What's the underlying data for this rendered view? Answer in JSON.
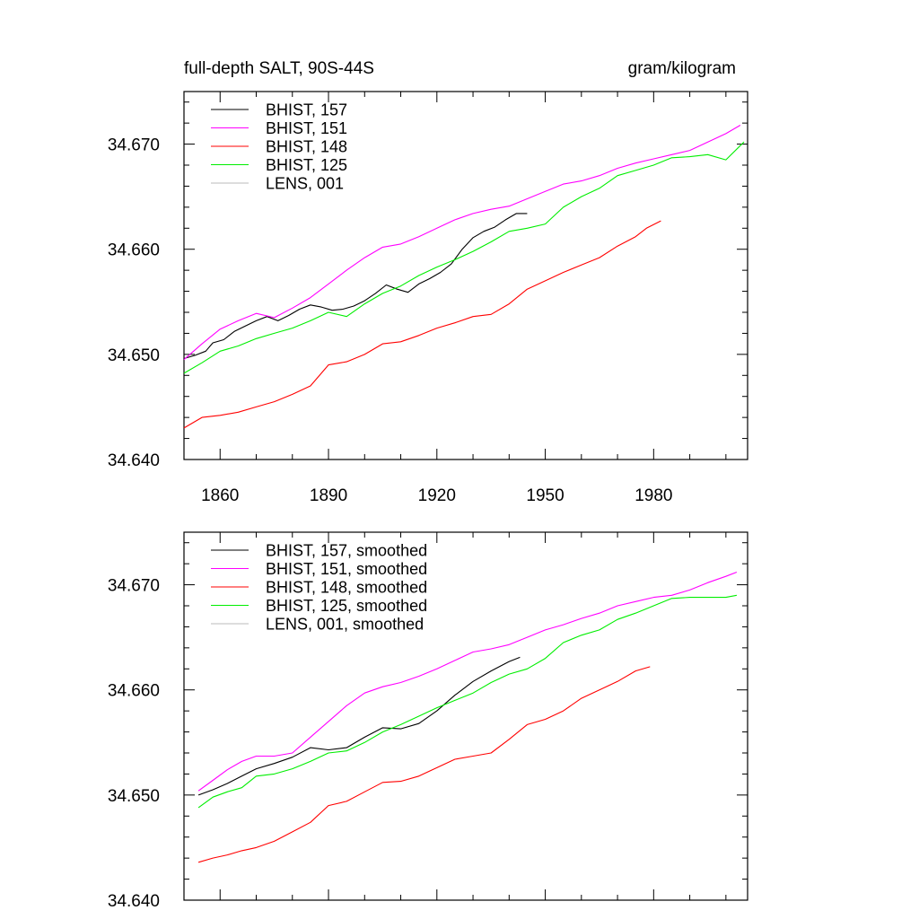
{
  "chart_data": [
    {
      "type": "line",
      "title_left": "full-depth SALT, 90S-44S",
      "title_right": "gram/kilogram",
      "xlabel": "",
      "ylabel": "",
      "xlim": [
        1850,
        2006
      ],
      "ylim": [
        34.64,
        34.675
      ],
      "x_ticks": [
        1860,
        1890,
        1920,
        1950,
        1980
      ],
      "x_tick_labels": [
        "1860",
        "1890",
        "1920",
        "1950",
        "1980"
      ],
      "y_ticks": [
        34.64,
        34.65,
        34.66,
        34.67
      ],
      "y_tick_labels": [
        "34.640",
        "34.650",
        "34.660",
        "34.670"
      ],
      "legend_position": "top-left",
      "grid": false,
      "series": [
        {
          "name": "BHIST, 157",
          "color": "#000000",
          "x": [
            1850,
            1853,
            1856,
            1858,
            1861,
            1864,
            1867,
            1870,
            1873,
            1876,
            1879,
            1882,
            1885,
            1888,
            1891,
            1894,
            1897,
            1900,
            1903,
            1906,
            1909,
            1912,
            1915,
            1918,
            1921,
            1924,
            1927,
            1930,
            1933,
            1936,
            1939,
            1942,
            1945
          ],
          "y": [
            34.6496,
            34.6499,
            34.6503,
            34.6511,
            34.6514,
            34.6522,
            34.6527,
            34.6532,
            34.6536,
            34.6532,
            34.6537,
            34.6543,
            34.6547,
            34.6545,
            34.6542,
            34.6543,
            34.6546,
            34.6551,
            34.6558,
            34.6566,
            34.6562,
            34.6559,
            34.6567,
            34.6572,
            34.6578,
            34.6586,
            34.66,
            34.6611,
            34.6617,
            34.6621,
            34.6628,
            34.6634,
            34.6634
          ]
        },
        {
          "name": "BHIST, 151",
          "color": "#ff00ff",
          "x": [
            1850,
            1855,
            1860,
            1865,
            1870,
            1875,
            1880,
            1885,
            1890,
            1895,
            1900,
            1905,
            1910,
            1915,
            1920,
            1925,
            1930,
            1935,
            1940,
            1945,
            1950,
            1955,
            1960,
            1965,
            1970,
            1975,
            1980,
            1985,
            1990,
            1995,
            2000,
            2004
          ],
          "y": [
            34.6495,
            34.651,
            34.6524,
            34.6532,
            34.6539,
            34.6535,
            34.6544,
            34.6554,
            34.6567,
            34.658,
            34.6592,
            34.6602,
            34.6605,
            34.6612,
            34.662,
            34.6628,
            34.6634,
            34.6638,
            34.6641,
            34.6648,
            34.6655,
            34.6662,
            34.6665,
            34.667,
            34.6677,
            34.6682,
            34.6686,
            34.669,
            34.6694,
            34.6702,
            34.671,
            34.6718
          ]
        },
        {
          "name": "BHIST, 148",
          "color": "#ff0000",
          "x": [
            1850,
            1855,
            1860,
            1865,
            1870,
            1875,
            1880,
            1885,
            1890,
            1895,
            1900,
            1905,
            1910,
            1915,
            1920,
            1925,
            1930,
            1935,
            1940,
            1945,
            1950,
            1955,
            1960,
            1965,
            1970,
            1975,
            1978,
            1982
          ],
          "y": [
            34.643,
            34.644,
            34.6442,
            34.6445,
            34.645,
            34.6455,
            34.6462,
            34.647,
            34.649,
            34.6493,
            34.65,
            34.651,
            34.6512,
            34.6518,
            34.6525,
            34.653,
            34.6536,
            34.6538,
            34.6548,
            34.6562,
            34.657,
            34.6578,
            34.6585,
            34.6592,
            34.6603,
            34.6612,
            34.662,
            34.6627
          ]
        },
        {
          "name": "BHIST, 125",
          "color": "#00ee00",
          "x": [
            1850,
            1855,
            1860,
            1865,
            1870,
            1875,
            1880,
            1885,
            1890,
            1895,
            1900,
            1905,
            1910,
            1915,
            1920,
            1925,
            1930,
            1935,
            1940,
            1945,
            1950,
            1955,
            1960,
            1965,
            1970,
            1975,
            1980,
            1985,
            1990,
            1995,
            2000,
            2005
          ],
          "y": [
            34.6482,
            34.6492,
            34.6503,
            34.6508,
            34.6515,
            34.652,
            34.6525,
            34.6532,
            34.654,
            34.6536,
            34.6548,
            34.6558,
            34.6565,
            34.6575,
            34.6583,
            34.659,
            34.6598,
            34.6607,
            34.6617,
            34.662,
            34.6624,
            34.664,
            34.665,
            34.6658,
            34.667,
            34.6675,
            34.668,
            34.6687,
            34.6688,
            34.669,
            34.6685,
            34.6702
          ]
        },
        {
          "name": "LENS, 001",
          "color": "#bbbbbb",
          "x": [],
          "y": []
        }
      ]
    },
    {
      "type": "line",
      "title_left": "",
      "title_right": "",
      "xlabel": "",
      "ylabel": "",
      "xlim": [
        1850,
        2006
      ],
      "ylim": [
        34.64,
        34.675
      ],
      "x_ticks": [
        1860,
        1890,
        1920,
        1950,
        1980
      ],
      "x_tick_labels": [],
      "y_ticks": [
        34.64,
        34.65,
        34.66,
        34.67
      ],
      "y_tick_labels": [
        "34.640",
        "34.650",
        "34.660",
        "34.670"
      ],
      "legend_position": "top-left",
      "grid": false,
      "series": [
        {
          "name": "BHIST, 157, smoothed",
          "color": "#000000",
          "x": [
            1854,
            1858,
            1862,
            1866,
            1870,
            1875,
            1880,
            1885,
            1890,
            1895,
            1900,
            1905,
            1910,
            1915,
            1920,
            1925,
            1930,
            1935,
            1940,
            1943
          ],
          "y": [
            34.65,
            34.6505,
            34.6511,
            34.6518,
            34.6525,
            34.653,
            34.6536,
            34.6545,
            34.6543,
            34.6545,
            34.6555,
            34.6564,
            34.6563,
            34.6568,
            34.658,
            34.6595,
            34.6608,
            34.6618,
            34.6627,
            34.6631
          ]
        },
        {
          "name": "BHIST, 151, smoothed",
          "color": "#ff00ff",
          "x": [
            1854,
            1858,
            1862,
            1866,
            1870,
            1875,
            1880,
            1885,
            1890,
            1895,
            1900,
            1905,
            1910,
            1915,
            1920,
            1925,
            1930,
            1935,
            1940,
            1945,
            1950,
            1955,
            1960,
            1965,
            1970,
            1975,
            1980,
            1985,
            1990,
            1995,
            2000,
            2003
          ],
          "y": [
            34.6504,
            34.6514,
            34.6524,
            34.6532,
            34.6537,
            34.6537,
            34.654,
            34.6555,
            34.657,
            34.6585,
            34.6597,
            34.6603,
            34.6607,
            34.6613,
            34.662,
            34.6628,
            34.6636,
            34.6639,
            34.6643,
            34.665,
            34.6657,
            34.6662,
            34.6668,
            34.6673,
            34.668,
            34.6684,
            34.6688,
            34.669,
            34.6695,
            34.6702,
            34.6708,
            34.6712
          ]
        },
        {
          "name": "BHIST, 148, smoothed",
          "color": "#ff0000",
          "x": [
            1854,
            1858,
            1862,
            1866,
            1870,
            1875,
            1880,
            1885,
            1890,
            1895,
            1900,
            1905,
            1910,
            1915,
            1920,
            1925,
            1930,
            1935,
            1940,
            1945,
            1950,
            1955,
            1960,
            1965,
            1970,
            1975,
            1979
          ],
          "y": [
            34.6436,
            34.644,
            34.6443,
            34.6447,
            34.645,
            34.6456,
            34.6465,
            34.6474,
            34.649,
            34.6494,
            34.6503,
            34.6512,
            34.6513,
            34.6518,
            34.6526,
            34.6534,
            34.6537,
            34.654,
            34.6553,
            34.6567,
            34.6572,
            34.658,
            34.6592,
            34.66,
            34.6608,
            34.6618,
            34.6622
          ]
        },
        {
          "name": "BHIST, 125, smoothed",
          "color": "#00ee00",
          "x": [
            1854,
            1858,
            1862,
            1866,
            1870,
            1875,
            1880,
            1885,
            1890,
            1895,
            1900,
            1905,
            1910,
            1915,
            1920,
            1925,
            1930,
            1935,
            1940,
            1945,
            1950,
            1955,
            1960,
            1965,
            1970,
            1975,
            1980,
            1985,
            1990,
            1995,
            2000,
            2003
          ],
          "y": [
            34.6488,
            34.6498,
            34.6503,
            34.6507,
            34.6518,
            34.652,
            34.6525,
            34.6532,
            34.654,
            34.6542,
            34.655,
            34.656,
            34.6567,
            34.6575,
            34.6583,
            34.659,
            34.6597,
            34.6607,
            34.6615,
            34.662,
            34.663,
            34.6645,
            34.6652,
            34.6657,
            34.6667,
            34.6673,
            34.668,
            34.6687,
            34.6688,
            34.6688,
            34.6688,
            34.669
          ]
        },
        {
          "name": "LENS, 001, smoothed",
          "color": "#bbbbbb",
          "x": [],
          "y": []
        }
      ]
    }
  ]
}
